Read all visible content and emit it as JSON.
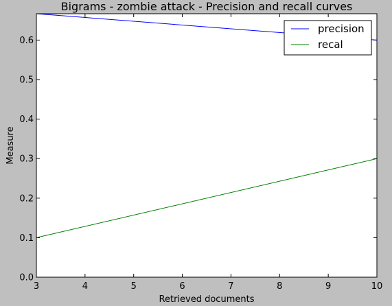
{
  "chart_data": {
    "type": "line",
    "title": "Bigrams - zombie attack - Precision and recall curves",
    "xlabel": "Retrieved documents",
    "ylabel": "Measure",
    "xlim": [
      3,
      10
    ],
    "ylim": [
      0.0,
      0.6667
    ],
    "xticks": [
      3,
      4,
      5,
      6,
      7,
      8,
      9,
      10
    ],
    "yticks": [
      0.0,
      0.1,
      0.2,
      0.3,
      0.4,
      0.5,
      0.6
    ],
    "ytick_labels": [
      "0.0",
      "0.1",
      "0.2",
      "0.3",
      "0.4",
      "0.5",
      "0.6"
    ],
    "grid": false,
    "legend_position": "top-right",
    "series": [
      {
        "name": "precision",
        "color": "#0000ff",
        "x": [
          3,
          10
        ],
        "y": [
          0.6667,
          0.6
        ]
      },
      {
        "name": "recal",
        "color": "#008000",
        "x": [
          3,
          10
        ],
        "y": [
          0.1,
          0.3
        ]
      }
    ]
  }
}
